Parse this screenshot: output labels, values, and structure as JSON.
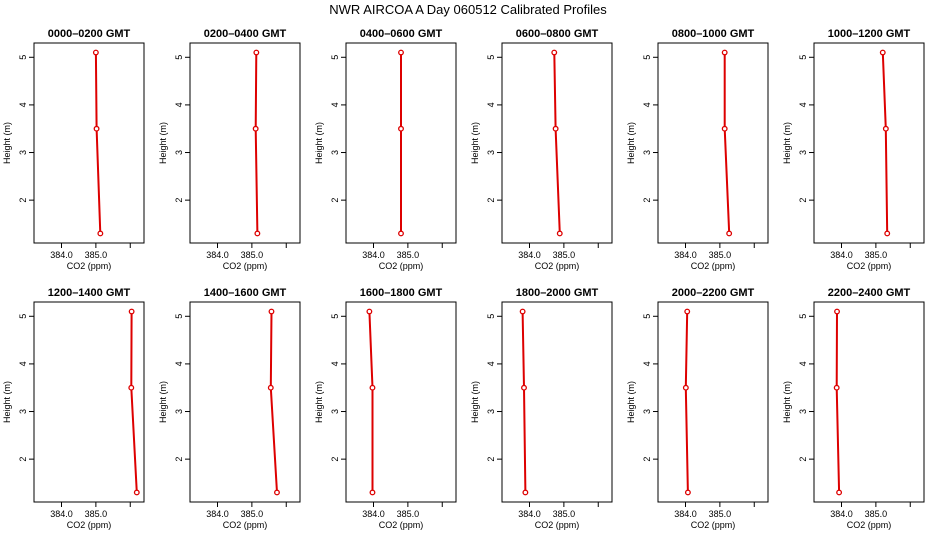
{
  "figure": {
    "title": "NWR AIRCOA A  Day 060512  Calibrated Profiles",
    "line_color": "#dd0000",
    "marker_color": "#dd0000"
  },
  "chart_data": [
    {
      "type": "line",
      "title": "0000–0200 GMT",
      "xlabel": "CO2 (ppm)",
      "ylabel": "Height (m)",
      "xlim": [
        383.2,
        386.4
      ],
      "ylim": [
        1.1,
        5.3
      ],
      "xticks": [
        384.0,
        385.0
      ],
      "xtick_labels": [
        "384.0",
        "385.0"
      ],
      "yticks": [
        2,
        3,
        4,
        5
      ],
      "ytick_labels": [
        "2",
        "3",
        "4",
        "5"
      ],
      "series": [
        {
          "x": [
            385.0,
            385.02,
            385.13
          ],
          "y": [
            5.1,
            3.5,
            1.3
          ]
        }
      ]
    },
    {
      "type": "line",
      "title": "0200–0400 GMT",
      "xlabel": "CO2 (ppm)",
      "ylabel": "Height (m)",
      "xlim": [
        383.2,
        386.4
      ],
      "ylim": [
        1.1,
        5.3
      ],
      "xticks": [
        384.0,
        385.0
      ],
      "xtick_labels": [
        "384.0",
        "385.0"
      ],
      "yticks": [
        2,
        3,
        4,
        5
      ],
      "ytick_labels": [
        "2",
        "3",
        "4",
        "5"
      ],
      "series": [
        {
          "x": [
            385.13,
            385.11,
            385.16
          ],
          "y": [
            5.1,
            3.5,
            1.3
          ]
        }
      ]
    },
    {
      "type": "line",
      "title": "0400–0600 GMT",
      "xlabel": "CO2 (ppm)",
      "ylabel": "Height (m)",
      "xlim": [
        383.2,
        386.4
      ],
      "ylim": [
        1.1,
        5.3
      ],
      "xticks": [
        384.0,
        385.0
      ],
      "xtick_labels": [
        "384.0",
        "385.0"
      ],
      "yticks": [
        2,
        3,
        4,
        5
      ],
      "ytick_labels": [
        "2",
        "3",
        "4",
        "5"
      ],
      "series": [
        {
          "x": [
            384.8,
            384.8,
            384.8
          ],
          "y": [
            5.1,
            3.5,
            1.3
          ]
        }
      ]
    },
    {
      "type": "line",
      "title": "0600–0800 GMT",
      "xlabel": "CO2 (ppm)",
      "ylabel": "Height (m)",
      "xlim": [
        383.2,
        386.4
      ],
      "ylim": [
        1.1,
        5.3
      ],
      "xticks": [
        384.0,
        385.0
      ],
      "xtick_labels": [
        "384.0",
        "385.0"
      ],
      "yticks": [
        2,
        3,
        4,
        5
      ],
      "ytick_labels": [
        "2",
        "3",
        "4",
        "5"
      ],
      "series": [
        {
          "x": [
            384.72,
            384.76,
            384.88
          ],
          "y": [
            5.1,
            3.5,
            1.3
          ]
        }
      ]
    },
    {
      "type": "line",
      "title": "0800–1000 GMT",
      "xlabel": "CO2 (ppm)",
      "ylabel": "Height (m)",
      "xlim": [
        383.2,
        386.4
      ],
      "ylim": [
        1.1,
        5.3
      ],
      "xticks": [
        384.0,
        385.0
      ],
      "xtick_labels": [
        "384.0",
        "385.0"
      ],
      "yticks": [
        2,
        3,
        4,
        5
      ],
      "ytick_labels": [
        "2",
        "3",
        "4",
        "5"
      ],
      "series": [
        {
          "x": [
            385.14,
            385.14,
            385.27
          ],
          "y": [
            5.1,
            3.5,
            1.3
          ]
        }
      ]
    },
    {
      "type": "line",
      "title": "1000–1200 GMT",
      "xlabel": "CO2 (ppm)",
      "ylabel": "Height (m)",
      "xlim": [
        383.2,
        386.4
      ],
      "ylim": [
        1.1,
        5.3
      ],
      "xticks": [
        384.0,
        385.0
      ],
      "xtick_labels": [
        "384.0",
        "385.0"
      ],
      "yticks": [
        2,
        3,
        4,
        5
      ],
      "ytick_labels": [
        "2",
        "3",
        "4",
        "5"
      ],
      "series": [
        {
          "x": [
            385.2,
            385.29,
            385.33
          ],
          "y": [
            5.1,
            3.5,
            1.3
          ]
        }
      ]
    },
    {
      "type": "line",
      "title": "1200–1400 GMT",
      "xlabel": "CO2 (ppm)",
      "ylabel": "Height (m)",
      "xlim": [
        383.2,
        386.4
      ],
      "ylim": [
        1.1,
        5.3
      ],
      "xticks": [
        384.0,
        385.0
      ],
      "xtick_labels": [
        "384.0",
        "385.0"
      ],
      "yticks": [
        2,
        3,
        4,
        5
      ],
      "ytick_labels": [
        "2",
        "3",
        "4",
        "5"
      ],
      "series": [
        {
          "x": [
            386.04,
            386.03,
            386.19
          ],
          "y": [
            5.1,
            3.5,
            1.3
          ]
        }
      ]
    },
    {
      "type": "line",
      "title": "1400–1600 GMT",
      "xlabel": "CO2 (ppm)",
      "ylabel": "Height (m)",
      "xlim": [
        383.2,
        386.4
      ],
      "ylim": [
        1.1,
        5.3
      ],
      "xticks": [
        384.0,
        385.0
      ],
      "xtick_labels": [
        "384.0",
        "385.0"
      ],
      "yticks": [
        2,
        3,
        4,
        5
      ],
      "ytick_labels": [
        "2",
        "3",
        "4",
        "5"
      ],
      "series": [
        {
          "x": [
            385.57,
            385.55,
            385.73
          ],
          "y": [
            5.1,
            3.5,
            1.3
          ]
        }
      ]
    },
    {
      "type": "line",
      "title": "1600–1800 GMT",
      "xlabel": "CO2 (ppm)",
      "ylabel": "Height (m)",
      "xlim": [
        383.2,
        386.4
      ],
      "ylim": [
        1.1,
        5.3
      ],
      "xticks": [
        384.0,
        385.0
      ],
      "xtick_labels": [
        "384.0",
        "385.0"
      ],
      "yticks": [
        2,
        3,
        4,
        5
      ],
      "ytick_labels": [
        "2",
        "3",
        "4",
        "5"
      ],
      "series": [
        {
          "x": [
            383.88,
            383.97,
            383.97
          ],
          "y": [
            5.1,
            3.5,
            1.3
          ]
        }
      ]
    },
    {
      "type": "line",
      "title": "1800–2000 GMT",
      "xlabel": "CO2 (ppm)",
      "ylabel": "Height (m)",
      "xlim": [
        383.2,
        386.4
      ],
      "ylim": [
        1.1,
        5.3
      ],
      "xticks": [
        384.0,
        385.0
      ],
      "xtick_labels": [
        "384.0",
        "385.0"
      ],
      "yticks": [
        2,
        3,
        4,
        5
      ],
      "ytick_labels": [
        "2",
        "3",
        "4",
        "5"
      ],
      "series": [
        {
          "x": [
            383.8,
            383.84,
            383.88
          ],
          "y": [
            5.1,
            3.5,
            1.3
          ]
        }
      ]
    },
    {
      "type": "line",
      "title": "2000–2200 GMT",
      "xlabel": "CO2 (ppm)",
      "ylabel": "Height (m)",
      "xlim": [
        383.2,
        386.4
      ],
      "ylim": [
        1.1,
        5.3
      ],
      "xticks": [
        384.0,
        385.0
      ],
      "xtick_labels": [
        "384.0",
        "385.0"
      ],
      "yticks": [
        2,
        3,
        4,
        5
      ],
      "ytick_labels": [
        "2",
        "3",
        "4",
        "5"
      ],
      "series": [
        {
          "x": [
            384.05,
            384.01,
            384.07
          ],
          "y": [
            5.1,
            3.5,
            1.3
          ]
        }
      ]
    },
    {
      "type": "line",
      "title": "2200–2400 GMT",
      "xlabel": "CO2 (ppm)",
      "ylabel": "Height (m)",
      "xlim": [
        383.2,
        386.4
      ],
      "ylim": [
        1.1,
        5.3
      ],
      "xticks": [
        384.0,
        385.0
      ],
      "xtick_labels": [
        "384.0",
        "385.0"
      ],
      "yticks": [
        2,
        3,
        4,
        5
      ],
      "ytick_labels": [
        "2",
        "3",
        "4",
        "5"
      ],
      "series": [
        {
          "x": [
            383.87,
            383.86,
            383.93
          ],
          "y": [
            5.1,
            3.5,
            1.3
          ]
        }
      ]
    }
  ]
}
